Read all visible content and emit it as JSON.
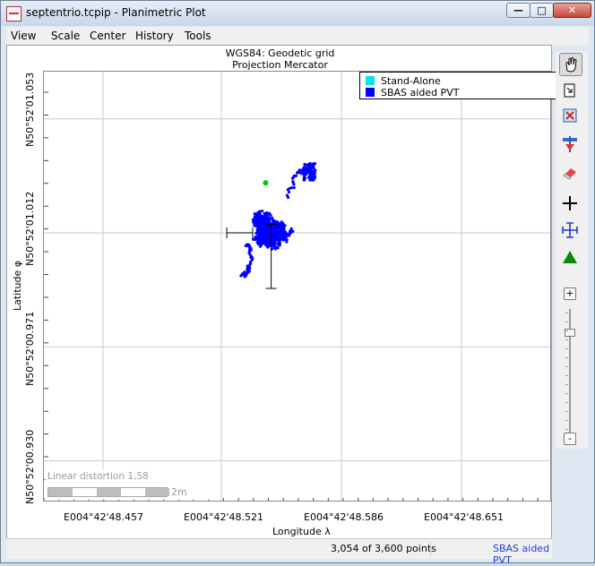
{
  "window": {
    "title": "septentrio.tcpip - Planimetric Plot",
    "minimize_glyph": "—",
    "maximize_glyph": "□",
    "close_glyph": "✕"
  },
  "menu": [
    "View",
    "Scale",
    "Center",
    "History",
    "Tools"
  ],
  "grid": {
    "title_line1": "WGS84: Geodetic grid",
    "title_line2": "Projection Mercator"
  },
  "legend": [
    {
      "label": "Stand-Alone",
      "color": "#00e5ee"
    },
    {
      "label": "SBAS aided PVT",
      "color": "#0000ff"
    }
  ],
  "x_axis": {
    "label": "Longitude λ",
    "ticks": [
      "E004°42'48.457",
      "E004°42'48.521",
      "E004°42'48.586",
      "E004°42'48.651"
    ]
  },
  "y_axis": {
    "label": "Latitude φ",
    "ticks": [
      "N50°52'01.053",
      "N50°52'01.012",
      "N50°52'00.971",
      "N50°52'00.930"
    ]
  },
  "chart_data": {
    "type": "scatter",
    "title": "WGS84: Geodetic grid / Projection Mercator",
    "xlabel": "Longitude λ",
    "ylabel": "Latitude φ",
    "x_ticks": [
      "E004°42'48.457",
      "E004°42'48.521",
      "E004°42'48.586",
      "E004°42'48.651"
    ],
    "y_ticks": [
      "N50°52'01.053",
      "N50°52'01.012",
      "N50°52'00.971",
      "N50°52'00.930"
    ],
    "xlim_arcsec": [
      48.425,
      48.7
    ],
    "ylim_arcsec": [
      50.915,
      51.07
    ],
    "series": [
      {
        "name": "SBAS aided PVT",
        "color": "#0000ff",
        "count": 3054,
        "center": [
          48.546,
          51.013
        ],
        "spread": [
          0.012,
          0.008
        ]
      },
      {
        "name": "Stand-Alone",
        "color": "#00e5ee",
        "count": 0
      }
    ],
    "highlight_point": {
      "x": 48.545,
      "y": 51.03,
      "color": "#00cc00"
    },
    "error_bars": {
      "center": [
        48.531,
        51.012
      ],
      "x_half_width": 0.007,
      "y_up": 0.003,
      "y_down": 0.02
    },
    "legend_position": "top-right"
  },
  "distortion": {
    "text": "Linear distortion 1,58",
    "scale_label": "2m"
  },
  "status": {
    "points": "3,054 of 3,600 points",
    "mode": "SBAS aided PVT"
  },
  "toolbar": {
    "zoom_in": "+",
    "zoom_out": "-"
  }
}
